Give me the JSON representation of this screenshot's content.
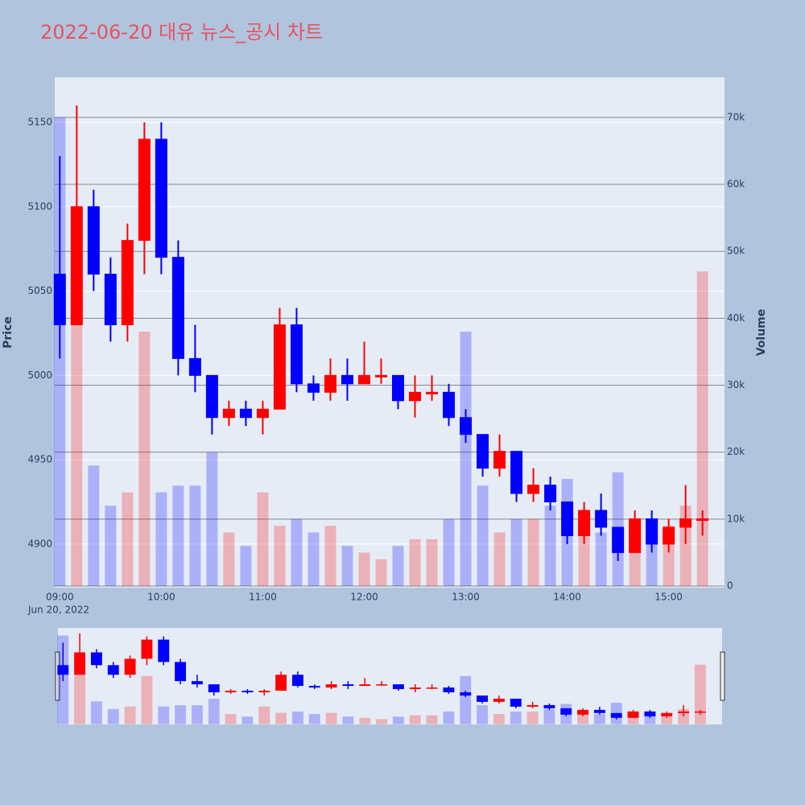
{
  "chart_data": {
    "type": "candlestick",
    "title": "2022-06-20 대유 뉴스_공시 차트",
    "ylabel": "Price",
    "y2label": "Volume",
    "x": [
      "2022-06-20 09:00",
      "2022-06-20 09:10",
      "2022-06-20 09:20",
      "2022-06-20 09:30",
      "2022-06-20 09:40",
      "2022-06-20 09:50",
      "2022-06-20 10:00",
      "2022-06-20 10:10",
      "2022-06-20 10:20",
      "2022-06-20 10:30",
      "2022-06-20 10:40",
      "2022-06-20 10:50",
      "2022-06-20 11:00",
      "2022-06-20 11:10",
      "2022-06-20 11:20",
      "2022-06-20 11:30",
      "2022-06-20 11:40",
      "2022-06-20 11:50",
      "2022-06-20 12:00",
      "2022-06-20 12:10",
      "2022-06-20 12:20",
      "2022-06-20 12:30",
      "2022-06-20 12:40",
      "2022-06-20 12:50",
      "2022-06-20 13:00",
      "2022-06-20 13:10",
      "2022-06-20 13:20",
      "2022-06-20 13:30",
      "2022-06-20 13:40",
      "2022-06-20 13:50",
      "2022-06-20 14:00",
      "2022-06-20 14:10",
      "2022-06-20 14:20",
      "2022-06-20 14:30",
      "2022-06-20 14:40",
      "2022-06-20 14:50",
      "2022-06-20 15:00",
      "2022-06-20 15:10",
      "2022-06-20 15:20"
    ],
    "open": [
      5060,
      5030,
      5100,
      5060,
      5030,
      5080,
      5140,
      5070,
      5010,
      5000,
      4975,
      4980,
      4975,
      4980,
      5030,
      4995,
      4990,
      5000,
      4995,
      5000,
      5000,
      4985,
      4990,
      4990,
      4975,
      4965,
      4945,
      4955,
      4930,
      4935,
      4925,
      4905,
      4920,
      4910,
      4895,
      4915,
      4900,
      4910,
      4915
    ],
    "high": [
      5130,
      5160,
      5110,
      5070,
      5090,
      5150,
      5150,
      5080,
      5030,
      5000,
      4985,
      4985,
      4985,
      5040,
      5040,
      5000,
      5010,
      5010,
      5020,
      5010,
      5000,
      5000,
      5000,
      4995,
      4980,
      4965,
      4965,
      4955,
      4945,
      4940,
      4925,
      4925,
      4930,
      4910,
      4920,
      4920,
      4915,
      4935,
      4920
    ],
    "low": [
      5010,
      5030,
      5050,
      5020,
      5020,
      5060,
      5060,
      5000,
      4990,
      4965,
      4970,
      4970,
      4965,
      4980,
      4990,
      4985,
      4985,
      4985,
      4995,
      4995,
      4980,
      4975,
      4985,
      4970,
      4960,
      4940,
      4940,
      4925,
      4925,
      4920,
      4900,
      4900,
      4905,
      4890,
      4895,
      4895,
      4895,
      4900,
      4905
    ],
    "close": [
      5030,
      5100,
      5060,
      5030,
      5080,
      5140,
      5070,
      5010,
      5000,
      4975,
      4980,
      4975,
      4980,
      5030,
      4995,
      4990,
      5000,
      4995,
      5000,
      5000,
      4985,
      4990,
      4990,
      4975,
      4965,
      4945,
      4955,
      4930,
      4935,
      4925,
      4905,
      4920,
      4910,
      4895,
      4915,
      4900,
      4910,
      4915,
      4915
    ],
    "volume": [
      70000,
      45000,
      18000,
      12000,
      14000,
      38000,
      14000,
      15000,
      15000,
      20000,
      8000,
      6000,
      14000,
      9000,
      10000,
      8000,
      9000,
      6000,
      5000,
      4000,
      6000,
      7000,
      7000,
      10000,
      38000,
      15000,
      8000,
      10000,
      10000,
      12000,
      16000,
      8000,
      8000,
      17000,
      10000,
      8000,
      9000,
      12000,
      47000
    ],
    "increasing_color": "#ff0000",
    "decreasing_color": "#0000ff",
    "ylim": [
      4874.2,
      5176.7
    ],
    "yticks": [
      4900,
      4950,
      5000,
      5050,
      5100,
      5150
    ],
    "y2lim": [
      -240,
      76000
    ],
    "y2ticks": [
      0,
      {
        "value": 10000,
        "label": "10k"
      },
      {
        "value": 20000,
        "label": "20k"
      },
      {
        "value": 30000,
        "label": "30k"
      },
      {
        "value": 40000,
        "label": "40k"
      },
      {
        "value": 50000,
        "label": "50k"
      },
      {
        "value": 60000,
        "label": "60k"
      },
      {
        "value": 70000,
        "label": "70k"
      }
    ],
    "xlim": [
      "2022-06-20 08:57",
      "2022-06-20 15:33"
    ],
    "xticks": [
      {
        "value": "2022-06-20 09:00",
        "label": "09:00"
      },
      {
        "value": "2022-06-20 10:00",
        "label": "10:00"
      },
      {
        "value": "2022-06-20 11:00",
        "label": "11:00"
      },
      {
        "value": "2022-06-20 12:00",
        "label": "12:00"
      },
      {
        "value": "2022-06-20 13:00",
        "label": "13:00"
      },
      {
        "value": "2022-06-20 14:00",
        "label": "14:00"
      },
      {
        "value": "2022-06-20 15:00",
        "label": "15:00"
      }
    ],
    "x_date_label": "Jun 20, 2022"
  }
}
